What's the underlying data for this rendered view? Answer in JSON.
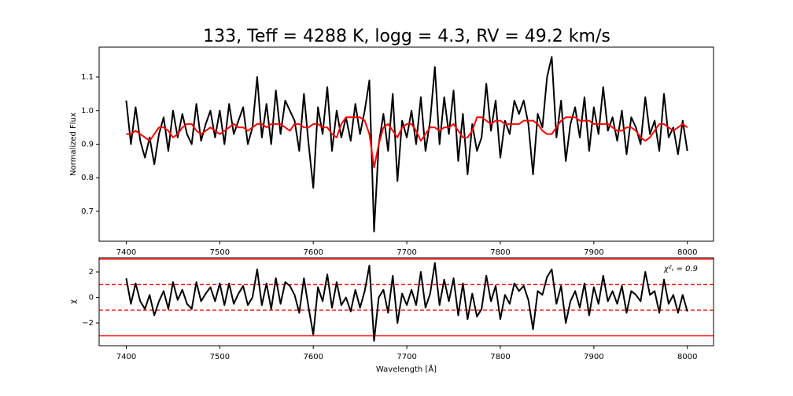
{
  "chart_data": [
    {
      "type": "line",
      "title": "133, Teff = 4288 K, logg = 4.3, RV = 49.2 km/s",
      "ylabel": "Normalized Flux",
      "x": [
        7400,
        7405,
        7410,
        7415,
        7420,
        7425,
        7430,
        7435,
        7440,
        7445,
        7450,
        7455,
        7460,
        7465,
        7470,
        7475,
        7480,
        7485,
        7490,
        7495,
        7500,
        7505,
        7510,
        7515,
        7520,
        7525,
        7530,
        7535,
        7540,
        7545,
        7550,
        7555,
        7560,
        7565,
        7570,
        7575,
        7580,
        7585,
        7590,
        7595,
        7600,
        7605,
        7610,
        7615,
        7620,
        7625,
        7630,
        7635,
        7640,
        7645,
        7650,
        7655,
        7660,
        7665,
        7670,
        7675,
        7680,
        7685,
        7690,
        7695,
        7700,
        7705,
        7710,
        7715,
        7720,
        7725,
        7730,
        7735,
        7740,
        7745,
        7750,
        7755,
        7760,
        7765,
        7770,
        7775,
        7780,
        7785,
        7790,
        7795,
        7800,
        7805,
        7810,
        7815,
        7820,
        7825,
        7830,
        7835,
        7840,
        7845,
        7850,
        7855,
        7860,
        7865,
        7870,
        7875,
        7880,
        7885,
        7890,
        7895,
        7900,
        7905,
        7910,
        7915,
        7920,
        7925,
        7930,
        7935,
        7940,
        7945,
        7950,
        7955,
        7960,
        7965,
        7970,
        7975,
        7980,
        7985,
        7990,
        7995,
        8000
      ],
      "series": [
        {
          "color": "#000000",
          "values": [
            1.03,
            0.9,
            1.01,
            0.91,
            0.86,
            0.92,
            0.84,
            0.93,
            0.98,
            0.88,
            1.0,
            0.92,
            0.99,
            0.93,
            0.9,
            1.02,
            0.91,
            0.96,
            1.0,
            0.92,
            1.0,
            0.9,
            1.02,
            0.93,
            0.97,
            1.01,
            0.9,
            0.95,
            1.1,
            0.92,
            1.02,
            0.9,
            1.06,
            0.93,
            1.03,
            1.0,
            0.97,
            0.88,
            1.05,
            0.9,
            0.77,
            1.01,
            0.93,
            1.07,
            0.88,
            1.0,
            0.92,
            0.98,
            0.91,
            1.02,
            0.93,
            1.0,
            1.09,
            0.64,
            0.9,
            0.99,
            0.88,
            1.05,
            0.79,
            0.97,
            0.92,
            1.0,
            0.9,
            1.04,
            0.88,
            0.97,
            1.13,
            0.9,
            1.04,
            0.93,
            1.06,
            0.85,
            0.99,
            0.81,
            0.96,
            0.88,
            0.92,
            1.08,
            0.94,
            1.03,
            0.86,
            0.97,
            0.93,
            1.03,
            0.99,
            1.03,
            0.96,
            0.81,
            0.99,
            0.95,
            1.1,
            1.16,
            0.92,
            1.03,
            0.85,
            0.96,
            1.01,
            0.92,
            1.04,
            0.88,
            1.01,
            0.93,
            1.07,
            0.94,
            0.98,
            0.91,
            1.0,
            0.87,
            0.98,
            0.95,
            0.9,
            1.04,
            0.93,
            0.97,
            0.88,
            1.05,
            0.92,
            0.95,
            0.87,
            0.97,
            0.88
          ]
        },
        {
          "color": "#ff0000",
          "values": [
            0.93,
            0.93,
            0.94,
            0.93,
            0.92,
            0.91,
            0.93,
            0.95,
            0.95,
            0.94,
            0.92,
            0.93,
            0.95,
            0.96,
            0.96,
            0.94,
            0.93,
            0.94,
            0.95,
            0.94,
            0.93,
            0.94,
            0.95,
            0.96,
            0.95,
            0.95,
            0.94,
            0.95,
            0.96,
            0.96,
            0.95,
            0.96,
            0.96,
            0.96,
            0.95,
            0.94,
            0.96,
            0.96,
            0.95,
            0.95,
            0.96,
            0.96,
            0.95,
            0.95,
            0.93,
            0.92,
            0.96,
            0.98,
            0.98,
            0.98,
            0.98,
            0.97,
            0.93,
            0.83,
            0.9,
            0.95,
            0.96,
            0.94,
            0.92,
            0.95,
            0.96,
            0.96,
            0.94,
            0.91,
            0.93,
            0.95,
            0.95,
            0.94,
            0.95,
            0.95,
            0.96,
            0.94,
            0.92,
            0.92,
            0.94,
            0.98,
            0.98,
            0.97,
            0.96,
            0.97,
            0.97,
            0.96,
            0.96,
            0.96,
            0.96,
            0.97,
            0.97,
            0.97,
            0.96,
            0.94,
            0.93,
            0.93,
            0.95,
            0.97,
            0.98,
            0.98,
            0.98,
            0.97,
            0.97,
            0.97,
            0.96,
            0.96,
            0.96,
            0.96,
            0.95,
            0.94,
            0.94,
            0.95,
            0.95,
            0.94,
            0.92,
            0.91,
            0.92,
            0.94,
            0.96,
            0.96,
            0.95,
            0.94,
            0.95,
            0.96,
            0.95
          ]
        }
      ],
      "xlim": [
        7371,
        8028
      ],
      "xticks": [
        7400,
        7500,
        7600,
        7700,
        7800,
        7900,
        8000
      ],
      "ylim": [
        0.611,
        1.189
      ],
      "yticks": [
        0.7,
        0.8,
        0.9,
        {
          "value": 1.0,
          "label": "1.0"
        },
        1.1
      ]
    },
    {
      "type": "line",
      "ylabel": "χ",
      "xlabel": "Wavelength [Å]",
      "annotation": "χ²ᵣ = 0.9",
      "x": [
        7400,
        7405,
        7410,
        7415,
        7420,
        7425,
        7430,
        7435,
        7440,
        7445,
        7450,
        7455,
        7460,
        7465,
        7470,
        7475,
        7480,
        7485,
        7490,
        7495,
        7500,
        7505,
        7510,
        7515,
        7520,
        7525,
        7530,
        7535,
        7540,
        7545,
        7550,
        7555,
        7560,
        7565,
        7570,
        7575,
        7580,
        7585,
        7590,
        7595,
        7600,
        7605,
        7610,
        7615,
        7620,
        7625,
        7630,
        7635,
        7640,
        7645,
        7650,
        7655,
        7660,
        7665,
        7670,
        7675,
        7680,
        7685,
        7690,
        7695,
        7700,
        7705,
        7710,
        7715,
        7720,
        7725,
        7730,
        7735,
        7740,
        7745,
        7750,
        7755,
        7760,
        7765,
        7770,
        7775,
        7780,
        7785,
        7790,
        7795,
        7800,
        7805,
        7810,
        7815,
        7820,
        7825,
        7830,
        7835,
        7840,
        7845,
        7850,
        7855,
        7860,
        7865,
        7870,
        7875,
        7880,
        7885,
        7890,
        7895,
        7900,
        7905,
        7910,
        7915,
        7920,
        7925,
        7930,
        7935,
        7940,
        7945,
        7950,
        7955,
        7960,
        7965,
        7970,
        7975,
        7980,
        7985,
        7990,
        7995,
        8000
      ],
      "series": [
        {
          "color": "#000000",
          "values": [
            1.5,
            -0.5,
            1.1,
            -0.3,
            -0.9,
            0.2,
            -1.4,
            -0.3,
            0.5,
            -0.9,
            1.2,
            -0.2,
            0.6,
            -0.5,
            -0.9,
            1.2,
            -0.3,
            0.3,
            0.8,
            -0.3,
            1.1,
            -0.6,
            1.1,
            -0.5,
            0.3,
            0.9,
            -0.6,
            0.0,
            2.2,
            -0.6,
            1.1,
            -0.9,
            1.5,
            -0.5,
            1.2,
            0.9,
            0.2,
            -1.2,
            1.5,
            -0.8,
            -2.9,
            0.8,
            -0.3,
            1.8,
            -0.8,
            1.2,
            -0.6,
            0.0,
            -1.1,
            0.6,
            -0.8,
            0.5,
            2.5,
            -3.4,
            0.0,
            0.6,
            -1.2,
            1.7,
            -2.0,
            0.3,
            -0.6,
            0.6,
            -0.6,
            2.0,
            -0.8,
            0.3,
            2.7,
            -0.6,
            1.4,
            -0.3,
            1.5,
            -1.4,
            1.1,
            -1.7,
            0.3,
            -1.5,
            -0.9,
            1.7,
            -0.3,
            0.9,
            -1.7,
            0.2,
            -0.5,
            1.1,
            0.5,
            0.9,
            -0.2,
            -2.5,
            0.5,
            0.2,
            1.6,
            2.2,
            -0.5,
            0.9,
            -2.0,
            -0.3,
            0.5,
            -0.8,
            1.1,
            -1.4,
            0.8,
            -0.5,
            1.7,
            -0.3,
            0.5,
            -0.5,
            0.9,
            -1.2,
            0.5,
            0.2,
            -0.3,
            2.0,
            0.2,
            0.5,
            -1.2,
            1.4,
            -0.5,
            0.2,
            -1.2,
            0.2,
            -1.1
          ]
        }
      ],
      "hlines": [
        {
          "value": 1,
          "color": "#ff0000",
          "style": "dashed"
        },
        {
          "value": -1,
          "color": "#ff0000",
          "style": "dashed"
        },
        {
          "value": 3,
          "color": "#ff0000",
          "style": "solid"
        },
        {
          "value": -3,
          "color": "#ff0000",
          "style": "solid"
        }
      ],
      "xlim": [
        7371,
        8028
      ],
      "xticks": [
        7400,
        7500,
        7600,
        7700,
        7800,
        7900,
        8000
      ],
      "ylim": [
        -3.78,
        3.11
      ],
      "yticks": [
        {
          "value": -2,
          "label": "−2"
        },
        0,
        2
      ]
    }
  ]
}
